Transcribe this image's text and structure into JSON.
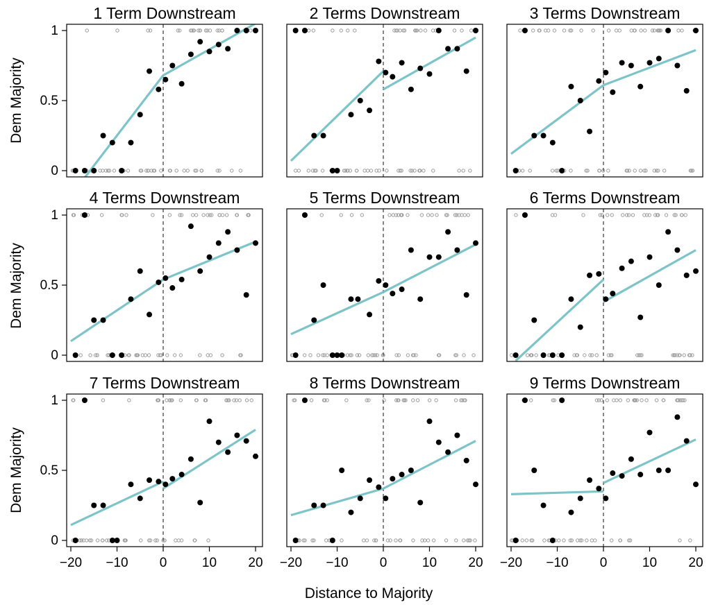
{
  "figure": {
    "ylabel": "Dem Majority",
    "xlabel": "Distance to Majority",
    "xlim": [
      -20,
      20
    ],
    "ylim": [
      0,
      1
    ],
    "xticks": [
      "−20",
      "−10",
      "0",
      "10",
      "20"
    ],
    "yticks": [
      "0",
      "0.5",
      "1"
    ],
    "colors": {
      "fit_line": "#7cc4c8",
      "binned_point": "#000000",
      "raw_point": "#9a9a9a",
      "cutoff": "#333333"
    }
  },
  "chart_data": [
    {
      "type": "scatter",
      "title": "1 Term Downstream",
      "binned_points": [
        [
          -19,
          0
        ],
        [
          -17,
          0
        ],
        [
          -15,
          0
        ],
        [
          -13,
          0.25
        ],
        [
          -11,
          0.2
        ],
        [
          -9,
          0
        ],
        [
          -7,
          0.2
        ],
        [
          -5,
          0.4
        ],
        [
          -3,
          0.71
        ],
        [
          -1,
          0.58
        ],
        [
          0.5,
          0.65
        ],
        [
          2,
          0.75
        ],
        [
          4,
          0.62
        ],
        [
          6,
          0.83
        ],
        [
          8,
          0.92
        ],
        [
          10,
          0.85
        ],
        [
          12,
          0.9
        ],
        [
          14,
          0.87
        ],
        [
          16,
          1
        ],
        [
          18,
          1
        ],
        [
          20,
          1
        ]
      ],
      "fit_left": [
        [
          -17,
          -0.05
        ],
        [
          0,
          0.68
        ]
      ],
      "fit_right": [
        [
          0,
          0.68
        ],
        [
          20,
          1.05
        ]
      ]
    },
    {
      "type": "scatter",
      "title": "2 Terms Downstream",
      "binned_points": [
        [
          -19,
          1
        ],
        [
          -17,
          1
        ],
        [
          -15,
          0.25
        ],
        [
          -13,
          0.25
        ],
        [
          -11,
          0
        ],
        [
          -10,
          0
        ],
        [
          -7,
          0.4
        ],
        [
          -5,
          0.5
        ],
        [
          -3,
          0.43
        ],
        [
          -1,
          0.78
        ],
        [
          0.5,
          0.7
        ],
        [
          2,
          0.67
        ],
        [
          4,
          0.77
        ],
        [
          6,
          0.58
        ],
        [
          8,
          0.73
        ],
        [
          10,
          0.69
        ],
        [
          12,
          1
        ],
        [
          14,
          0.87
        ],
        [
          16,
          0.87
        ],
        [
          18,
          0.71
        ],
        [
          20,
          1
        ]
      ],
      "fit_left": [
        [
          -20,
          0.07
        ],
        [
          0,
          0.71
        ]
      ],
      "fit_right": [
        [
          0,
          0.58
        ],
        [
          20,
          0.95
        ]
      ]
    },
    {
      "type": "scatter",
      "title": "3 Terms Downstream",
      "binned_points": [
        [
          -19,
          0
        ],
        [
          -17,
          1
        ],
        [
          -15,
          0.25
        ],
        [
          -13,
          0.25
        ],
        [
          -11,
          0.2
        ],
        [
          -9,
          0
        ],
        [
          -7,
          0.6
        ],
        [
          -5,
          0.5
        ],
        [
          -3,
          0.28
        ],
        [
          -1,
          0.64
        ],
        [
          0.5,
          0.7
        ],
        [
          2,
          0.56
        ],
        [
          4,
          0.77
        ],
        [
          6,
          0.75
        ],
        [
          8,
          0.6
        ],
        [
          10,
          0.77
        ],
        [
          12,
          0.8
        ],
        [
          14,
          1
        ],
        [
          16,
          0.75
        ],
        [
          18,
          0.57
        ],
        [
          20,
          1
        ]
      ],
      "fit_left": [
        [
          -20,
          0.12
        ],
        [
          0,
          0.61
        ]
      ],
      "fit_right": [
        [
          0,
          0.61
        ],
        [
          20,
          0.86
        ]
      ]
    },
    {
      "type": "scatter",
      "title": "4 Terms Downstream",
      "binned_points": [
        [
          -19,
          0
        ],
        [
          -17,
          1
        ],
        [
          -15,
          0.25
        ],
        [
          -13,
          0.25
        ],
        [
          -11,
          0
        ],
        [
          -9,
          0
        ],
        [
          -7,
          0.4
        ],
        [
          -5,
          0.6
        ],
        [
          -3,
          0.29
        ],
        [
          -1,
          0.52
        ],
        [
          0.5,
          0.55
        ],
        [
          2,
          0.48
        ],
        [
          4,
          0.54
        ],
        [
          6,
          0.92
        ],
        [
          8,
          0.6
        ],
        [
          10,
          0.7
        ],
        [
          12,
          0.8
        ],
        [
          14,
          0.88
        ],
        [
          16,
          0.75
        ],
        [
          18,
          0.43
        ],
        [
          20,
          0.8
        ]
      ],
      "fit_left": [
        [
          -20,
          0.1
        ],
        [
          0,
          0.54
        ]
      ],
      "fit_right": [
        [
          0,
          0.54
        ],
        [
          20,
          0.81
        ]
      ]
    },
    {
      "type": "scatter",
      "title": "5 Terms Downstream",
      "binned_points": [
        [
          -19,
          0
        ],
        [
          -17,
          1
        ],
        [
          -15,
          0.25
        ],
        [
          -13,
          0.5
        ],
        [
          -11,
          0
        ],
        [
          -10,
          0
        ],
        [
          -9,
          0
        ],
        [
          -7,
          0.4
        ],
        [
          -5.5,
          0.4
        ],
        [
          -3,
          0.29
        ],
        [
          -1,
          0.53
        ],
        [
          0.5,
          0.5
        ],
        [
          2,
          0.44
        ],
        [
          4,
          0.47
        ],
        [
          6,
          0.75
        ],
        [
          8,
          0.4
        ],
        [
          10,
          0.7
        ],
        [
          12,
          0.7
        ],
        [
          14,
          0.88
        ],
        [
          16,
          0.75
        ],
        [
          18,
          0.43
        ],
        [
          20,
          0.8
        ]
      ],
      "fit_left": [
        [
          -20,
          0.15
        ],
        [
          0,
          0.45
        ]
      ],
      "fit_right": [
        [
          0,
          0.45
        ],
        [
          20,
          0.79
        ]
      ]
    },
    {
      "type": "scatter",
      "title": "6 Terms Downstream",
      "binned_points": [
        [
          -19,
          0
        ],
        [
          -17,
          1
        ],
        [
          -15,
          0.25
        ],
        [
          -13,
          0
        ],
        [
          -11,
          0
        ],
        [
          -9,
          0
        ],
        [
          -7,
          0.4
        ],
        [
          -5,
          0.2
        ],
        [
          -3,
          0.57
        ],
        [
          -1,
          0.58
        ],
        [
          0.5,
          0.4
        ],
        [
          2,
          0.44
        ],
        [
          4,
          0.62
        ],
        [
          6,
          0.67
        ],
        [
          8,
          0.27
        ],
        [
          10,
          0.7
        ],
        [
          12,
          0.5
        ],
        [
          14,
          0.88
        ],
        [
          16,
          0.75
        ],
        [
          18,
          0.57
        ],
        [
          20,
          0.6
        ]
      ],
      "fit_left": [
        [
          -19,
          -0.04
        ],
        [
          0,
          0.54
        ]
      ],
      "fit_right": [
        [
          0,
          0.38
        ],
        [
          20,
          0.75
        ]
      ]
    },
    {
      "type": "scatter",
      "title": "7 Terms Downstream",
      "binned_points": [
        [
          -19,
          0
        ],
        [
          -17,
          1
        ],
        [
          -15,
          0.25
        ],
        [
          -13,
          0.25
        ],
        [
          -11,
          0
        ],
        [
          -10,
          0
        ],
        [
          -7,
          0.4
        ],
        [
          -5,
          0.3
        ],
        [
          -3,
          0.43
        ],
        [
          -1,
          0.42
        ],
        [
          0.5,
          0.4
        ],
        [
          2,
          0.44
        ],
        [
          4,
          0.47
        ],
        [
          6,
          0.58
        ],
        [
          8,
          0.27
        ],
        [
          10,
          0.85
        ],
        [
          12,
          0.7
        ],
        [
          14,
          0.63
        ],
        [
          16,
          0.75
        ],
        [
          18,
          0.71
        ],
        [
          20,
          0.6
        ]
      ],
      "fit_left": [
        [
          -20,
          0.11
        ],
        [
          0,
          0.42
        ]
      ],
      "fit_right": [
        [
          0,
          0.37
        ],
        [
          20,
          0.79
        ]
      ]
    },
    {
      "type": "scatter",
      "title": "8 Terms Downstream",
      "binned_points": [
        [
          -19,
          0
        ],
        [
          -17,
          1
        ],
        [
          -15,
          0.25
        ],
        [
          -13,
          0.25
        ],
        [
          -11,
          0
        ],
        [
          -9,
          0.5
        ],
        [
          -7,
          0.2
        ],
        [
          -5,
          0.3
        ],
        [
          -3,
          0.43
        ],
        [
          -1,
          0.38
        ],
        [
          0.5,
          0.3
        ],
        [
          2,
          0.44
        ],
        [
          4,
          0.47
        ],
        [
          6,
          0.5
        ],
        [
          8,
          0.27
        ],
        [
          10,
          0.85
        ],
        [
          12,
          0.7
        ],
        [
          14,
          0.63
        ],
        [
          16,
          0.75
        ],
        [
          18,
          0.57
        ],
        [
          20,
          0.4
        ]
      ],
      "fit_left": [
        [
          -20,
          0.18
        ],
        [
          0,
          0.37
        ]
      ],
      "fit_right": [
        [
          0,
          0.37
        ],
        [
          20,
          0.71
        ]
      ]
    },
    {
      "type": "scatter",
      "title": "9 Terms Downstream",
      "binned_points": [
        [
          -19,
          0
        ],
        [
          -17,
          1
        ],
        [
          -15,
          0.5
        ],
        [
          -13,
          0.25
        ],
        [
          -11,
          0
        ],
        [
          -9,
          1
        ],
        [
          -7,
          0.2
        ],
        [
          -5,
          0.3
        ],
        [
          -3,
          0.43
        ],
        [
          -1,
          0.37
        ],
        [
          0.5,
          0.3
        ],
        [
          2,
          0.48
        ],
        [
          4,
          0.46
        ],
        [
          6,
          0.58
        ],
        [
          8,
          0.47
        ],
        [
          10,
          0.77
        ],
        [
          12,
          0.5
        ],
        [
          14,
          0.5
        ],
        [
          16,
          0.88
        ],
        [
          18,
          0.71
        ],
        [
          20,
          0.4
        ]
      ],
      "fit_left": [
        [
          -20,
          0.33
        ],
        [
          0,
          0.35
        ]
      ],
      "fit_right": [
        [
          0,
          0.41
        ],
        [
          20,
          0.72
        ]
      ]
    }
  ]
}
